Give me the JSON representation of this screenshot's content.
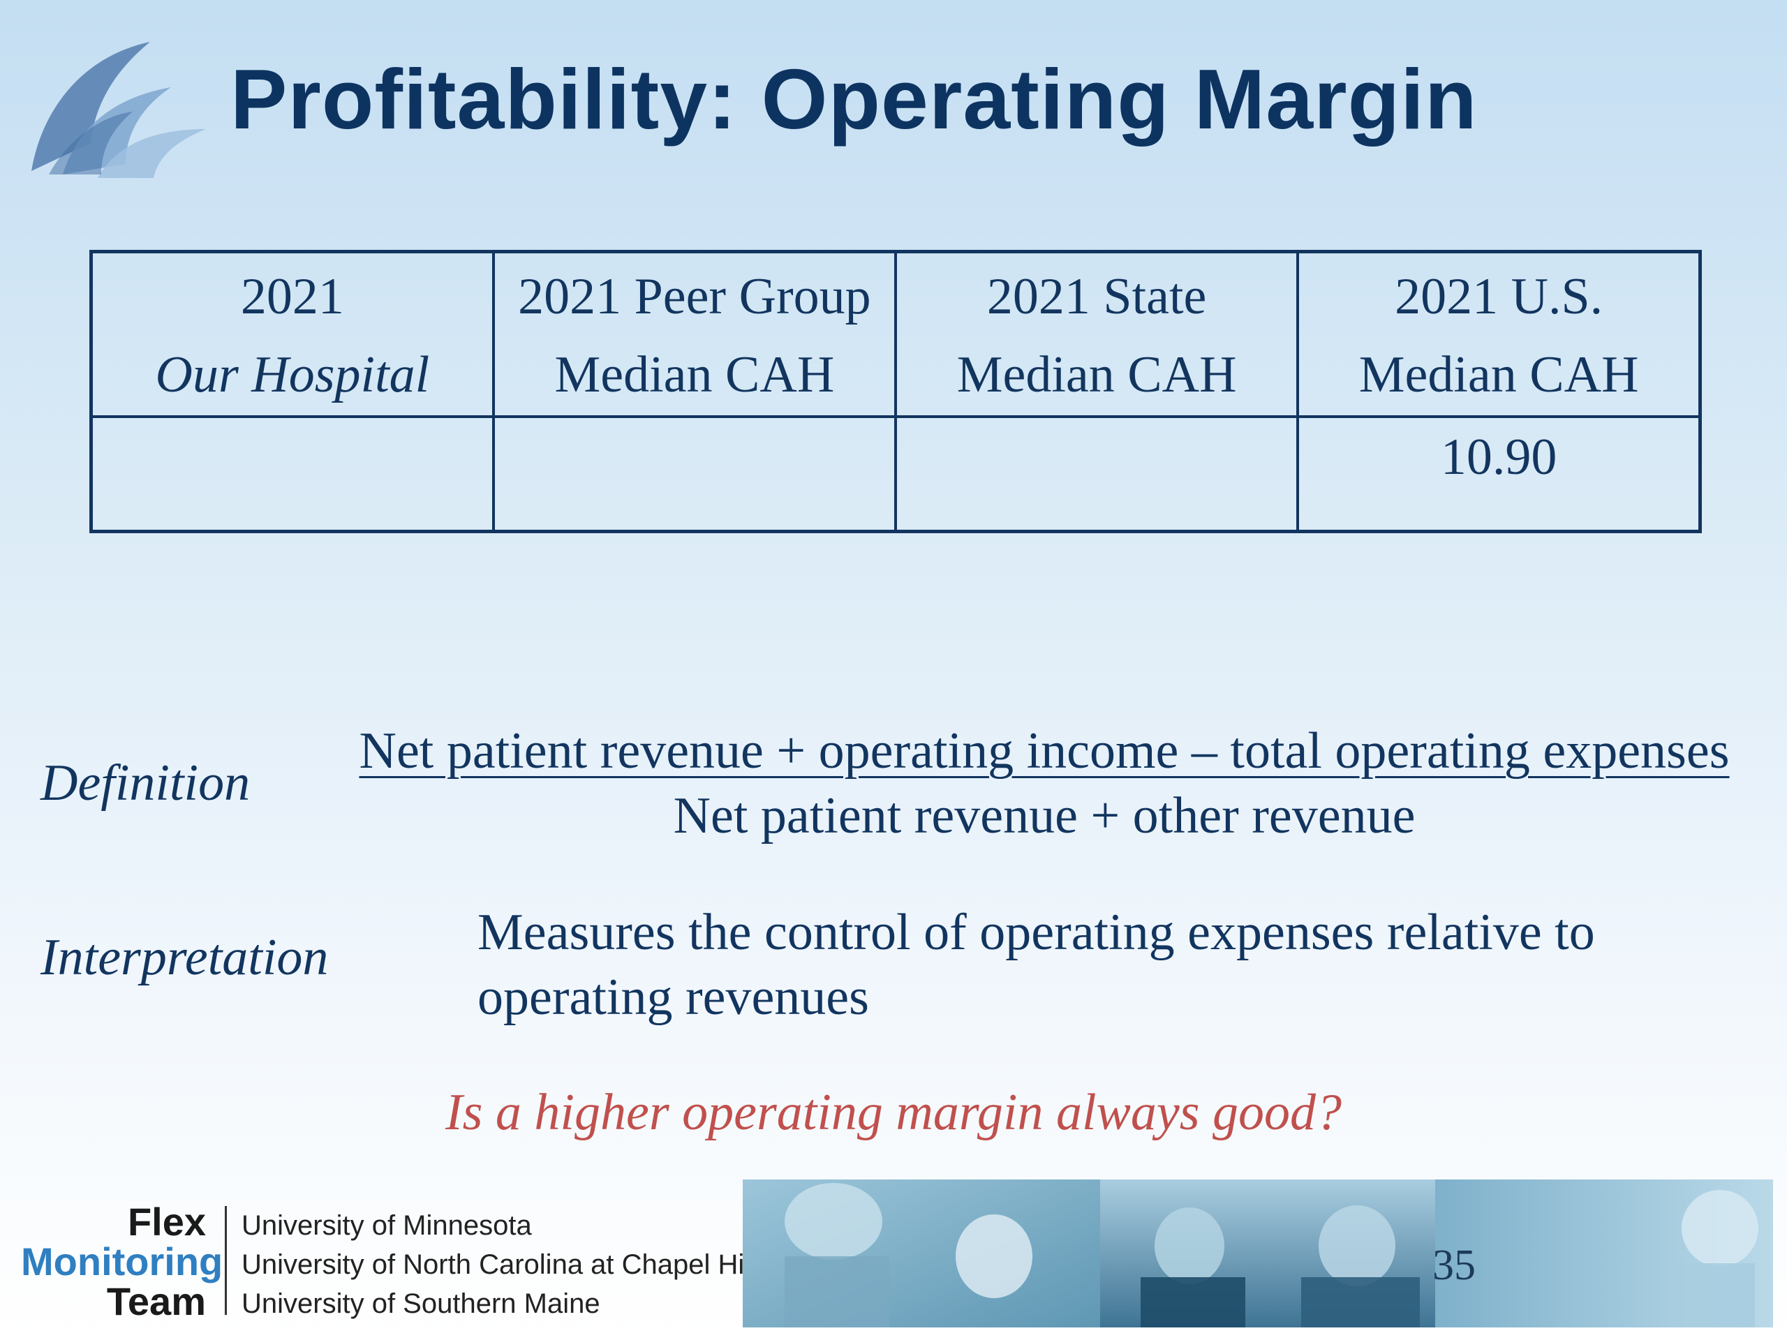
{
  "slide": {
    "title": "Profitability:  Operating Margin",
    "page_number": "35"
  },
  "table": {
    "headers": [
      {
        "line1": "2021",
        "line2": "Our Hospital"
      },
      {
        "line1": "2021 Peer Group",
        "line2": "Median CAH"
      },
      {
        "line1": "2021 State",
        "line2": "Median CAH"
      },
      {
        "line1": "2021 U.S.",
        "line2": "Median CAH"
      }
    ],
    "values": [
      "",
      "",
      "",
      "10.90"
    ]
  },
  "definition": {
    "label": "Definition",
    "numerator": "Net patient revenue + operating income – total operating expenses",
    "denominator": "Net patient revenue + other revenue"
  },
  "interpretation": {
    "label": "Interpretation",
    "text": "Measures the control of operating expenses relative to operating revenues"
  },
  "question": "Is a higher operating margin always good?",
  "footer": {
    "org_line1": "Flex",
    "org_line2": "Monitoring",
    "org_line3": "Team",
    "universities": [
      "University of Minnesota",
      "University of North Carolina at Chapel Hill",
      "University of Southern Maine"
    ]
  },
  "colors": {
    "title": "#0d3461",
    "text": "#12355f",
    "question": "#c0504d",
    "brand_blue": "#2f7fc1"
  }
}
